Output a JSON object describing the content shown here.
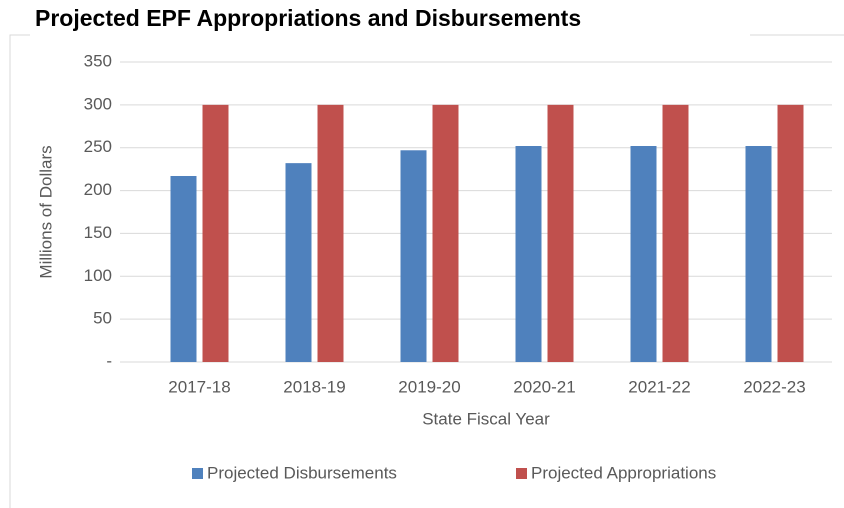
{
  "chart_data": {
    "type": "bar",
    "title": "Projected EPF Appropriations and Disbursements",
    "x_label": "State Fiscal Year",
    "y_label": "Millions of Dollars",
    "categories": [
      "2017-18",
      "2018-19",
      "2019-20",
      "2020-21",
      "2021-22",
      "2022-23"
    ],
    "series": [
      {
        "name": "Projected Disbursements",
        "color": "#4f81bd",
        "values": [
          217,
          232,
          247,
          252,
          252,
          252
        ]
      },
      {
        "name": "Projected Appropriations",
        "color": "#c0504d",
        "values": [
          300,
          300,
          300,
          300,
          300,
          300
        ]
      }
    ],
    "ylim": [
      0,
      350
    ],
    "yticks": [
      {
        "value": 0,
        "label": "-"
      },
      50,
      100,
      150,
      200,
      250,
      300,
      350
    ],
    "grid": true,
    "legend": "bottom"
  }
}
